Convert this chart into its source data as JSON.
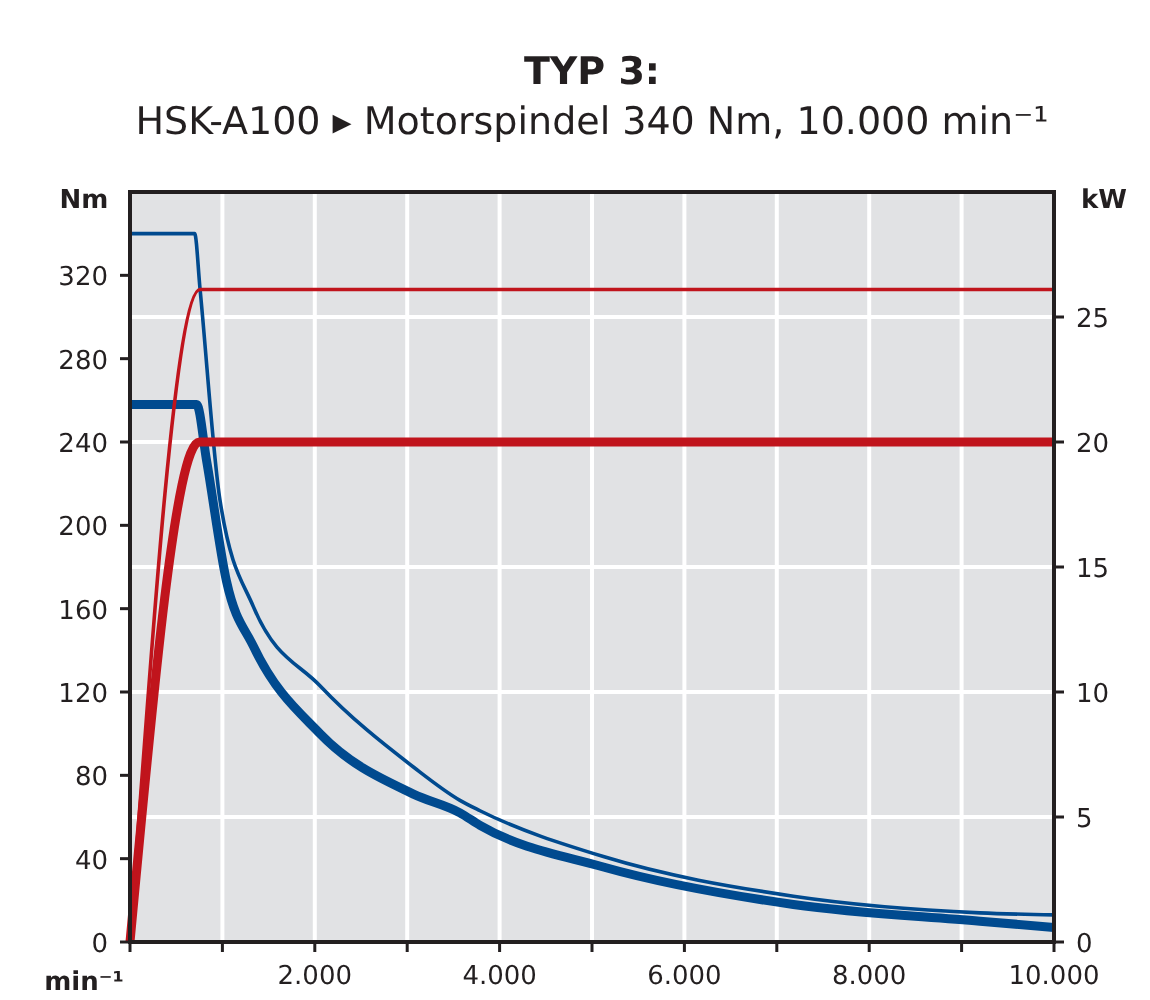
{
  "chart_data": {
    "type": "line",
    "title": "TYP 3:",
    "subtitle": "HSK-A100 ▸ Motorspindel 340 Nm, 10.000 min⁻¹",
    "xlabel": "min⁻¹",
    "ylabel": "Nm",
    "y2label": "kW",
    "xlim": [
      0,
      10000
    ],
    "xticks": [
      {
        "value": 0,
        "label": null
      },
      {
        "value": 1000,
        "label": null
      },
      {
        "value": 2000,
        "label": "2.000"
      },
      {
        "value": 3000,
        "label": null
      },
      {
        "value": 4000,
        "label": "4.000"
      },
      {
        "value": 5000,
        "label": null
      },
      {
        "value": 6000,
        "label": "6.000"
      },
      {
        "value": 7000,
        "label": null
      },
      {
        "value": 8000,
        "label": "8.000"
      },
      {
        "value": 9000,
        "label": null
      },
      {
        "value": 10000,
        "label": "10.000"
      }
    ],
    "ylim": [
      0,
      360
    ],
    "yticks": [
      0,
      40,
      80,
      120,
      160,
      200,
      240,
      280,
      320
    ],
    "y2lim": [
      0,
      30
    ],
    "y2ticks": [
      0,
      5,
      10,
      15,
      20,
      25
    ],
    "grid": true,
    "marker": "none",
    "line_style": "solid",
    "series": [
      {
        "color": "#004a8f",
        "x": [
          0,
          721,
          829,
          1045,
          1335,
          2056,
          3067,
          3571,
          3788,
          5123,
          7180,
          9199,
          10000
        ],
        "values": [
          258,
          258,
          231,
          173,
          142,
          100,
          71,
          62,
          56,
          36,
          18,
          10,
          7
        ]
      },
      {
        "color": "#004a8f",
        "x": [
          0,
          700,
          757,
          974,
          1335,
          2056,
          3067,
          3571,
          3788,
          5123,
          7180,
          9199,
          10000
        ],
        "values": [
          340,
          340,
          314,
          212,
          161,
          123,
          84,
          68,
          63,
          41,
          22,
          14,
          13
        ]
      },
      {
        "color": "#c0141c",
        "axis": "y2",
        "x": [
          0,
          750,
          10000
        ],
        "values": [
          0,
          20,
          20
        ]
      },
      {
        "color": "#c0141c",
        "axis": "y2",
        "x": [
          0,
          757,
          10000
        ],
        "values": [
          0,
          26.1,
          26.1
        ]
      }
    ]
  }
}
